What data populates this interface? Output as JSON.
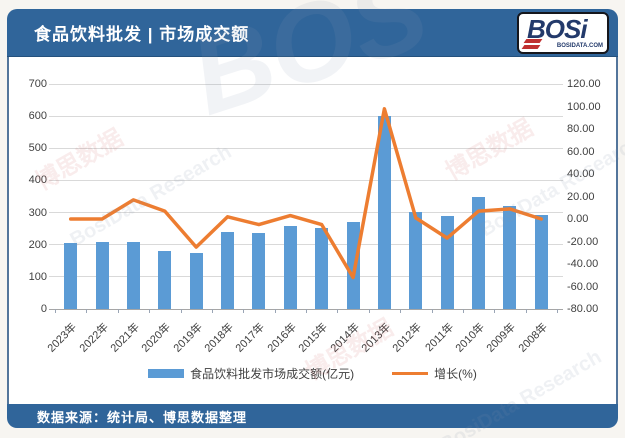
{
  "header": {
    "title": "食品饮料批发 | 市场成交额",
    "logo": {
      "text": "BOSi",
      "subtext": "BOSIDATA.COM"
    }
  },
  "footer": {
    "source": "数据来源：统计局、博思数据整理"
  },
  "watermark": {
    "cn": "博思数据",
    "en": "BosiData Research",
    "logo": "BOS"
  },
  "colors": {
    "header_blue": "#30659a",
    "bar_blue": "#5b9bd5",
    "line_orange": "#ed7d31",
    "gridline": "#d9d9d9"
  },
  "chart_data": {
    "type": "bar",
    "title": "食品饮料批发市场成交额",
    "categories": [
      "2023年",
      "2022年",
      "2021年",
      "2020年",
      "2019年",
      "2018年",
      "2017年",
      "2016年",
      "2015年",
      "2014年",
      "2013年",
      "2012年",
      "2011年",
      "2010年",
      "2009年",
      "2008年"
    ],
    "series": [
      {
        "name": "食品饮料批发市场成交额(亿元)",
        "type": "bar",
        "axis": "left",
        "values": [
          205,
          208,
          208,
          180,
          173,
          240,
          238,
          257,
          252,
          270,
          600,
          303,
          290,
          350,
          320,
          292
        ]
      },
      {
        "name": "增长(%)",
        "type": "line",
        "axis": "right",
        "values": [
          0,
          0,
          17,
          7,
          -25,
          2,
          -5,
          3,
          -5,
          -52,
          98,
          1,
          -17,
          7,
          9,
          0
        ]
      }
    ],
    "left_axis": {
      "min": 0,
      "max": 700,
      "step": 100,
      "ticks": [
        "0",
        "100",
        "200",
        "300",
        "400",
        "500",
        "600",
        "700"
      ]
    },
    "right_axis": {
      "min": -80,
      "max": 120,
      "step": 20,
      "ticks": [
        "-80.00",
        "-60.00",
        "-40.00",
        "-20.00",
        "0.00",
        "20.00",
        "40.00",
        "60.00",
        "80.00",
        "100.00",
        "120.00"
      ]
    },
    "legend_position": "bottom",
    "grid": true
  }
}
